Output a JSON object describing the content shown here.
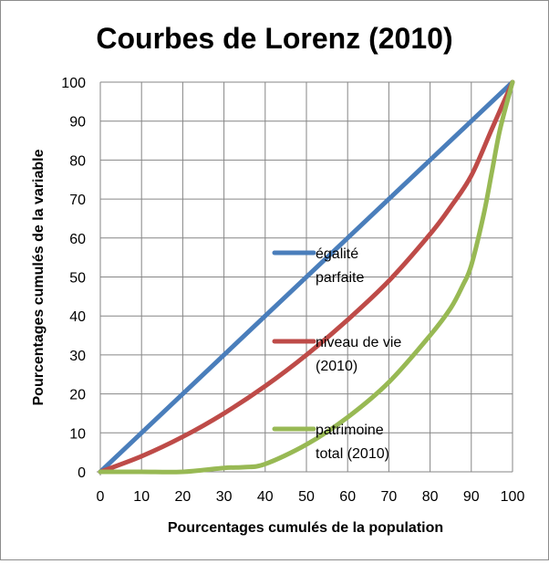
{
  "chart_data": {
    "type": "line",
    "title": "Courbes de Lorenz (2010)",
    "xlabel": "Pourcentages cumulés de la population",
    "ylabel": "Pourcentages cumulés de la variable",
    "xlim": [
      0,
      100
    ],
    "ylim": [
      0,
      100
    ],
    "x_ticks": [
      "0",
      "10",
      "20",
      "30",
      "40",
      "50",
      "60",
      "70",
      "80",
      "90",
      "100"
    ],
    "y_ticks": [
      "0",
      "10",
      "20",
      "30",
      "40",
      "50",
      "60",
      "70",
      "80",
      "90",
      "100"
    ],
    "grid": true,
    "legend_position": "inside-center",
    "series": [
      {
        "name": "égalité parfaite",
        "legend_lines": [
          "égalité",
          "parfaite"
        ],
        "color": "#4a7ebb",
        "x": [
          0,
          100
        ],
        "y": [
          0,
          100
        ]
      },
      {
        "name": "niveau de vie (2010)",
        "legend_lines": [
          "niveau de vie",
          "(2010)"
        ],
        "color": "#be4b48",
        "x": [
          0,
          10,
          20,
          30,
          40,
          50,
          60,
          70,
          80,
          85,
          90,
          95,
          100
        ],
        "y": [
          0,
          4,
          9,
          15,
          22,
          30,
          39,
          49,
          61,
          68,
          76,
          88,
          100
        ]
      },
      {
        "name": "patrimoine total (2010)",
        "legend_lines": [
          "patrimoine",
          "total (2010)"
        ],
        "color": "#98b954",
        "x": [
          0,
          10,
          20,
          30,
          35,
          40,
          50,
          60,
          70,
          80,
          85,
          88,
          90,
          93,
          95,
          97,
          100
        ],
        "y": [
          0,
          0,
          0,
          1,
          1.2,
          2,
          7,
          14,
          23,
          35,
          42,
          48,
          53,
          66,
          77,
          88,
          100
        ]
      }
    ]
  }
}
